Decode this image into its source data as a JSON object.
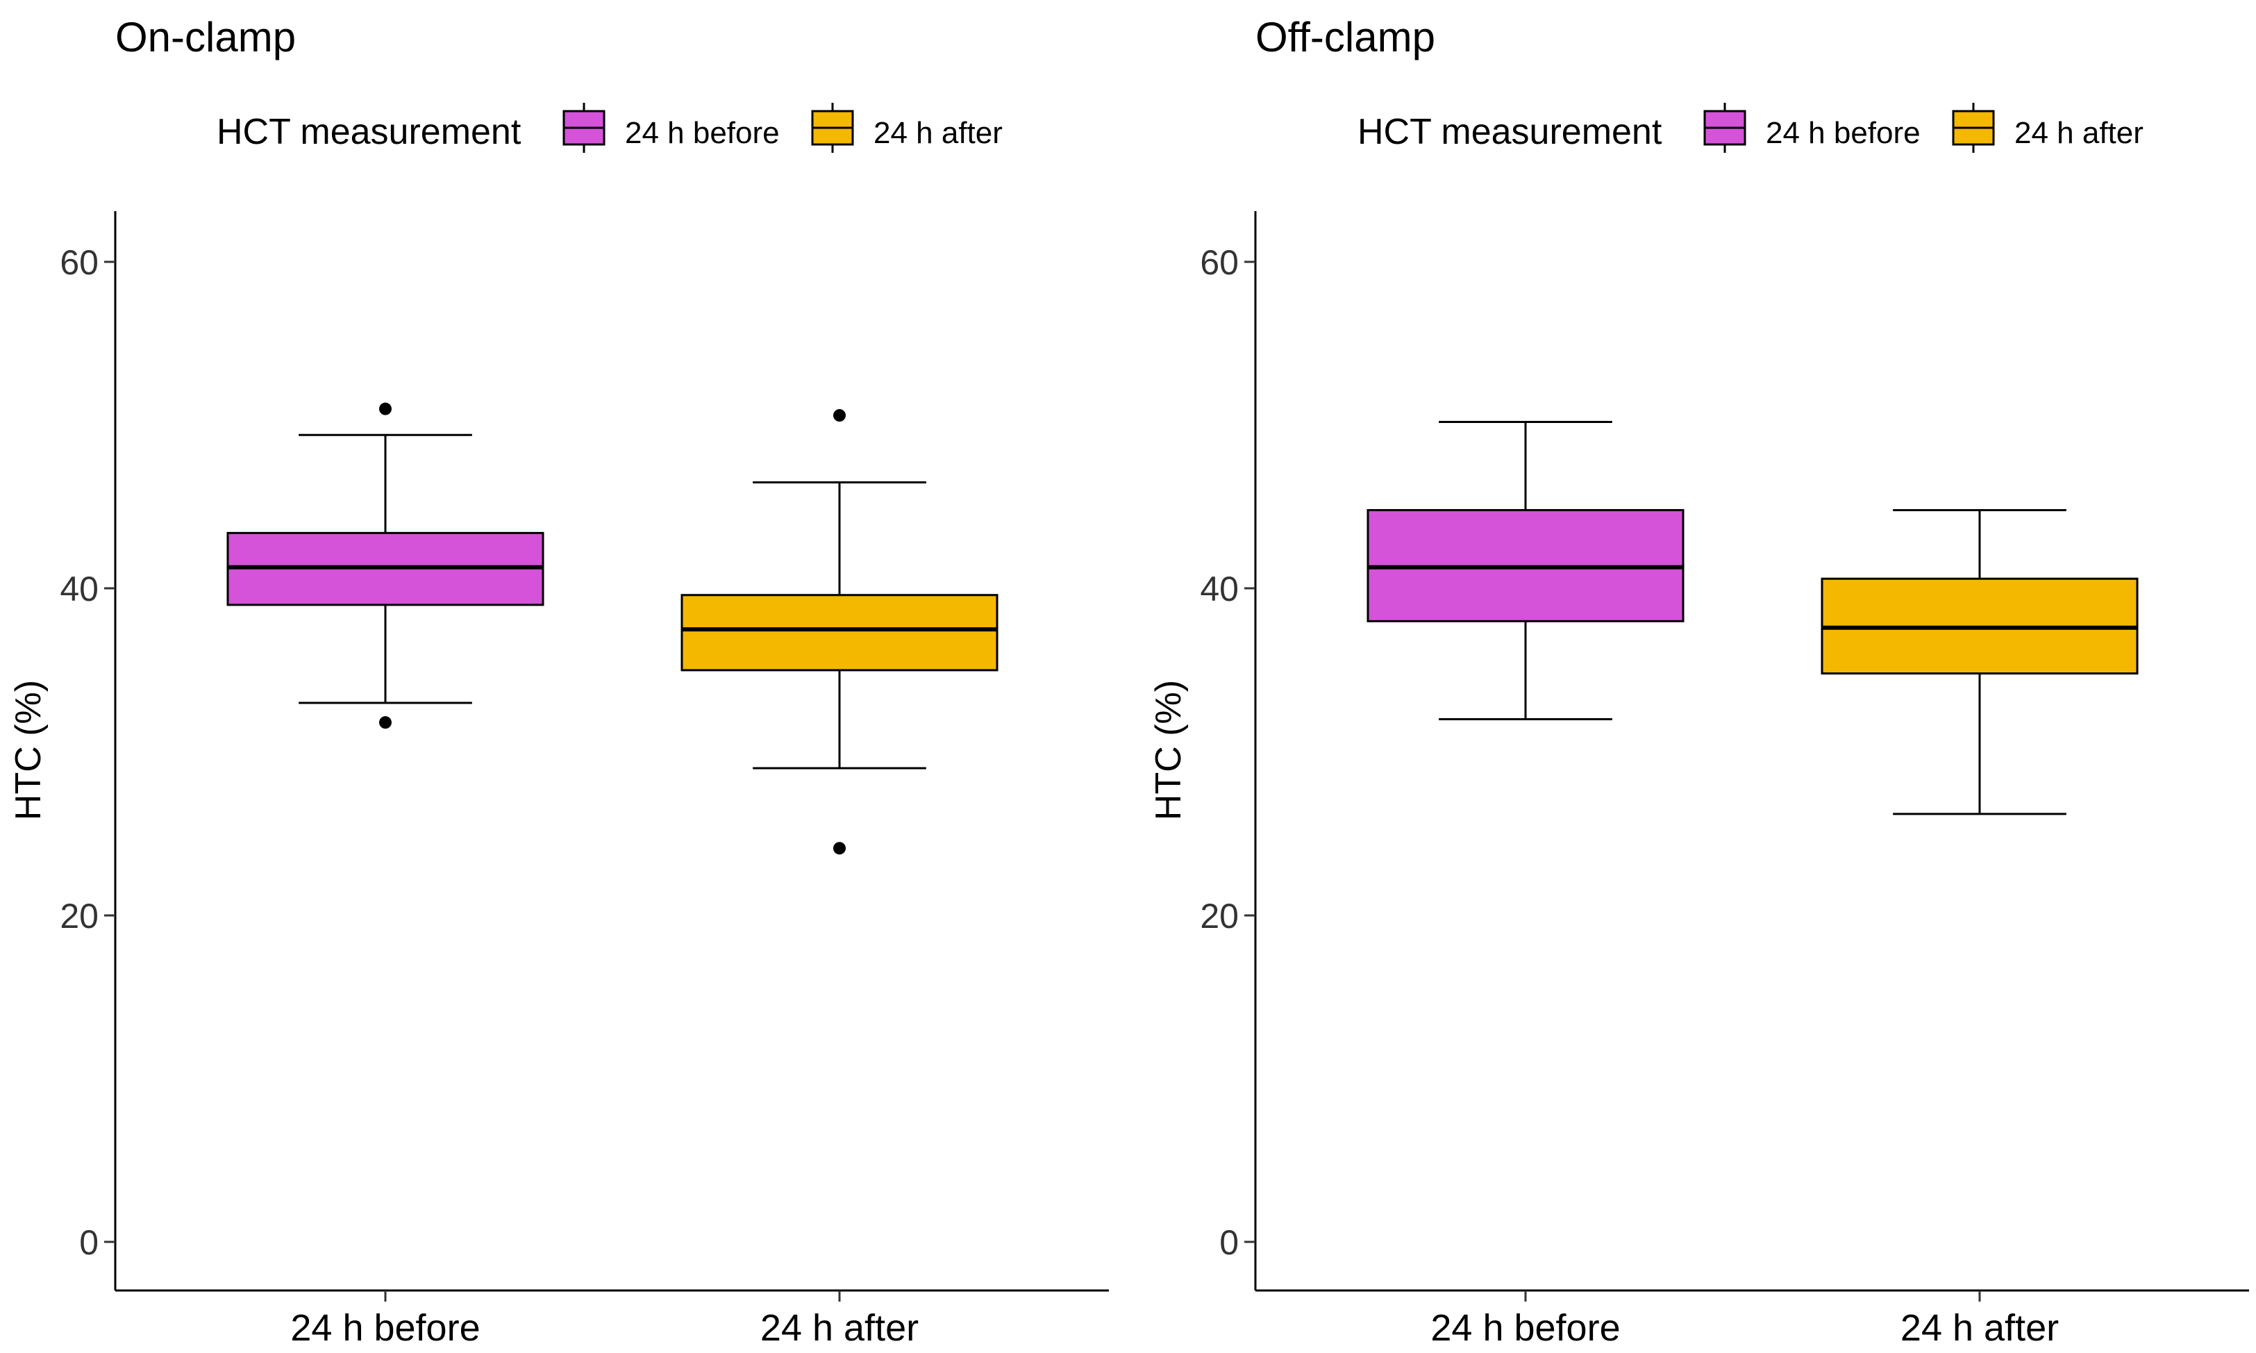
{
  "chart_data": [
    {
      "type": "boxplot",
      "title": "On-clamp",
      "legend_title": "HCT measurement",
      "legend_position": "top",
      "xlabel": "",
      "ylabel": "HTC (%)",
      "ylim": [
        -3,
        63
      ],
      "yticks": [
        0,
        20,
        40,
        60
      ],
      "categories": [
        "24 h before",
        "24 h after"
      ],
      "series": [
        {
          "name": "24 h before",
          "color": "#D453D9",
          "q1": 39,
          "median": 41.3,
          "q3": 43.4,
          "whisker_low": 33,
          "whisker_high": 49.4,
          "outliers": [
            51,
            31.8
          ]
        },
        {
          "name": "24 h after",
          "color": "#F5B800",
          "q1": 35,
          "median": 37.5,
          "q3": 39.6,
          "whisker_low": 29,
          "whisker_high": 46.5,
          "outliers": [
            50.6,
            24.1
          ]
        }
      ]
    },
    {
      "type": "boxplot",
      "title": "Off-clamp",
      "legend_title": "HCT measurement",
      "legend_position": "top",
      "xlabel": "",
      "ylabel": "HTC (%)",
      "ylim": [
        -3,
        63
      ],
      "yticks": [
        0,
        20,
        40,
        60
      ],
      "categories": [
        "24 h before",
        "24 h after"
      ],
      "series": [
        {
          "name": "24 h before",
          "color": "#D453D9",
          "q1": 38,
          "median": 41.3,
          "q3": 44.8,
          "whisker_low": 32,
          "whisker_high": 50.2,
          "outliers": []
        },
        {
          "name": "24 h after",
          "color": "#F5B800",
          "q1": 34.8,
          "median": 37.6,
          "q3": 40.6,
          "whisker_low": 26.2,
          "whisker_high": 44.8,
          "outliers": []
        }
      ]
    }
  ]
}
